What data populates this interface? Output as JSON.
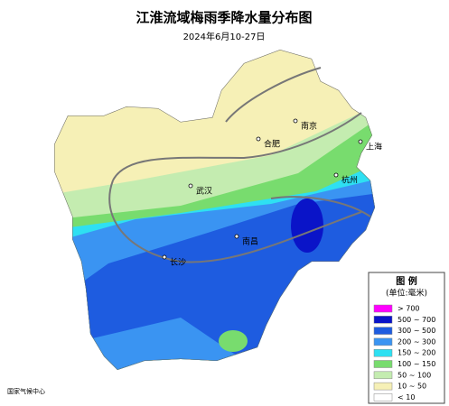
{
  "header": {
    "title": "江淮流域梅雨季降水量分布图",
    "subtitle": "2024年6月10-27日"
  },
  "cities": [
    {
      "label": "南京"
    },
    {
      "label": "合肥"
    },
    {
      "label": "上海"
    },
    {
      "label": "武汉"
    },
    {
      "label": "杭州"
    },
    {
      "label": "南昌"
    },
    {
      "label": "长沙"
    }
  ],
  "legend": {
    "title": "图 例",
    "unit": "(单位:毫米)",
    "items": [
      {
        "label": "> 700",
        "color": "#ff00ff"
      },
      {
        "label": "500 ~ 700",
        "color": "#0a14c8"
      },
      {
        "label": "300 ~ 500",
        "color": "#1e5ce0"
      },
      {
        "label": "200 ~ 300",
        "color": "#3a94f2"
      },
      {
        "label": "150 ~ 200",
        "color": "#2ee0f2"
      },
      {
        "label": "100 ~ 150",
        "color": "#78dc6e"
      },
      {
        "label": "50 ~ 100",
        "color": "#c4ecb0"
      },
      {
        "label": "10 ~ 50",
        "color": "#f6f0b6"
      },
      {
        "label": "< 10",
        "color": "#ffffff"
      }
    ]
  },
  "footer": "国家气候中心"
}
